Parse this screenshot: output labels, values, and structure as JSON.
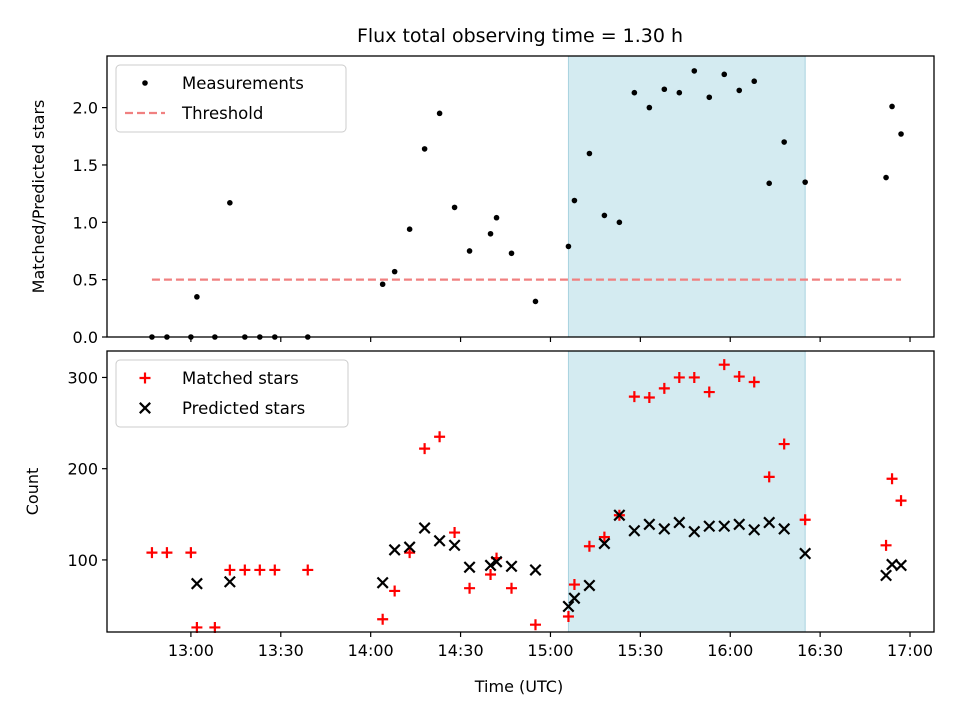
{
  "chart_data": [
    {
      "type": "scatter",
      "title": "Flux total observing time = 1.30 h",
      "xlabel": "",
      "ylabel": "Matched/Predicted stars",
      "xlim": [
        "12:32",
        "17:08"
      ],
      "ylim": [
        0,
        2.45
      ],
      "yticks": [
        0.0,
        0.5,
        1.0,
        1.5,
        2.0
      ],
      "ytick_labels": [
        "0.0",
        "0.5",
        "1.0",
        "1.5",
        "2.0"
      ],
      "shaded_interval": [
        "15:06",
        "16:25"
      ],
      "shaded_color": "#d4ebf1",
      "legend_position": "upper left",
      "series": [
        {
          "name": "Measurements",
          "marker": "point",
          "color": "#000000",
          "points": [
            {
              "x": "12:47",
              "y": 0.0
            },
            {
              "x": "12:52",
              "y": 0.0
            },
            {
              "x": "13:00",
              "y": 0.0
            },
            {
              "x": "13:02",
              "y": 0.35
            },
            {
              "x": "13:08",
              "y": 0.0
            },
            {
              "x": "13:13",
              "y": 1.17
            },
            {
              "x": "13:18",
              "y": 0.0
            },
            {
              "x": "13:23",
              "y": 0.0
            },
            {
              "x": "13:28",
              "y": 0.0
            },
            {
              "x": "13:39",
              "y": 0.0
            },
            {
              "x": "14:04",
              "y": 0.46
            },
            {
              "x": "14:08",
              "y": 0.57
            },
            {
              "x": "14:13",
              "y": 0.94
            },
            {
              "x": "14:18",
              "y": 1.64
            },
            {
              "x": "14:23",
              "y": 1.95
            },
            {
              "x": "14:28",
              "y": 1.13
            },
            {
              "x": "14:33",
              "y": 0.75
            },
            {
              "x": "14:40",
              "y": 0.9
            },
            {
              "x": "14:42",
              "y": 1.04
            },
            {
              "x": "14:47",
              "y": 0.73
            },
            {
              "x": "14:55",
              "y": 0.31
            },
            {
              "x": "15:06",
              "y": 0.79
            },
            {
              "x": "15:08",
              "y": 1.19
            },
            {
              "x": "15:13",
              "y": 1.6
            },
            {
              "x": "15:18",
              "y": 1.06
            },
            {
              "x": "15:23",
              "y": 1.0
            },
            {
              "x": "15:28",
              "y": 2.13
            },
            {
              "x": "15:33",
              "y": 2.0
            },
            {
              "x": "15:38",
              "y": 2.16
            },
            {
              "x": "15:43",
              "y": 2.13
            },
            {
              "x": "15:48",
              "y": 2.32
            },
            {
              "x": "15:53",
              "y": 2.09
            },
            {
              "x": "15:58",
              "y": 2.29
            },
            {
              "x": "16:03",
              "y": 2.15
            },
            {
              "x": "16:08",
              "y": 2.23
            },
            {
              "x": "16:13",
              "y": 1.34
            },
            {
              "x": "16:18",
              "y": 1.7
            },
            {
              "x": "16:25",
              "y": 1.35
            },
            {
              "x": "16:52",
              "y": 1.39
            },
            {
              "x": "16:54",
              "y": 2.01
            },
            {
              "x": "16:57",
              "y": 1.77
            }
          ]
        },
        {
          "name": "Threshold",
          "marker": "dashed-line",
          "color": "#f08080",
          "points": [
            {
              "x": "12:47",
              "y": 0.5
            },
            {
              "x": "16:57",
              "y": 0.5
            }
          ]
        }
      ]
    },
    {
      "type": "scatter",
      "title": "",
      "xlabel": "Time (UTC)",
      "ylabel": "Count",
      "xlim": [
        "12:32",
        "17:08"
      ],
      "ylim": [
        21,
        329
      ],
      "yticks": [
        100,
        200,
        300
      ],
      "ytick_labels": [
        "100",
        "200",
        "300"
      ],
      "xticks": [
        "13:00",
        "13:30",
        "14:00",
        "14:30",
        "15:00",
        "15:30",
        "16:00",
        "16:30",
        "17:00"
      ],
      "xtick_labels": [
        "13:00",
        "13:30",
        "14:00",
        "14:30",
        "15:00",
        "15:30",
        "16:00",
        "16:30",
        "17:00"
      ],
      "shaded_interval": [
        "15:06",
        "16:25"
      ],
      "shaded_color": "#d4ebf1",
      "legend_position": "upper left",
      "series": [
        {
          "name": "Matched stars",
          "marker": "plus",
          "color": "#ff0000",
          "points": [
            {
              "x": "12:47",
              "y": 108
            },
            {
              "x": "12:52",
              "y": 108
            },
            {
              "x": "13:00",
              "y": 108
            },
            {
              "x": "13:02",
              "y": 26
            },
            {
              "x": "13:08",
              "y": 26
            },
            {
              "x": "13:13",
              "y": 89
            },
            {
              "x": "13:18",
              "y": 89
            },
            {
              "x": "13:23",
              "y": 89
            },
            {
              "x": "13:28",
              "y": 89
            },
            {
              "x": "13:39",
              "y": 89
            },
            {
              "x": "14:04",
              "y": 35
            },
            {
              "x": "14:08",
              "y": 66
            },
            {
              "x": "14:13",
              "y": 108
            },
            {
              "x": "14:18",
              "y": 222
            },
            {
              "x": "14:23",
              "y": 235
            },
            {
              "x": "14:28",
              "y": 130
            },
            {
              "x": "14:33",
              "y": 69
            },
            {
              "x": "14:40",
              "y": 84
            },
            {
              "x": "14:42",
              "y": 102
            },
            {
              "x": "14:47",
              "y": 69
            },
            {
              "x": "14:55",
              "y": 29
            },
            {
              "x": "15:06",
              "y": 38
            },
            {
              "x": "15:08",
              "y": 73
            },
            {
              "x": "15:13",
              "y": 115
            },
            {
              "x": "15:18",
              "y": 125
            },
            {
              "x": "15:23",
              "y": 149
            },
            {
              "x": "15:28",
              "y": 279
            },
            {
              "x": "15:33",
              "y": 278
            },
            {
              "x": "15:38",
              "y": 288
            },
            {
              "x": "15:43",
              "y": 300
            },
            {
              "x": "15:48",
              "y": 300
            },
            {
              "x": "15:53",
              "y": 284
            },
            {
              "x": "15:58",
              "y": 314
            },
            {
              "x": "16:03",
              "y": 301
            },
            {
              "x": "16:08",
              "y": 295
            },
            {
              "x": "16:13",
              "y": 191
            },
            {
              "x": "16:18",
              "y": 227
            },
            {
              "x": "16:25",
              "y": 144
            },
            {
              "x": "16:52",
              "y": 116
            },
            {
              "x": "16:54",
              "y": 189
            },
            {
              "x": "16:57",
              "y": 165
            }
          ]
        },
        {
          "name": "Predicted stars",
          "marker": "x",
          "color": "#000000",
          "points": [
            {
              "x": "13:02",
              "y": 74
            },
            {
              "x": "13:13",
              "y": 76
            },
            {
              "x": "14:04",
              "y": 75
            },
            {
              "x": "14:08",
              "y": 111
            },
            {
              "x": "14:13",
              "y": 114
            },
            {
              "x": "14:18",
              "y": 135
            },
            {
              "x": "14:23",
              "y": 121
            },
            {
              "x": "14:28",
              "y": 116
            },
            {
              "x": "14:33",
              "y": 92
            },
            {
              "x": "14:40",
              "y": 94
            },
            {
              "x": "14:42",
              "y": 98
            },
            {
              "x": "14:47",
              "y": 93
            },
            {
              "x": "14:55",
              "y": 89
            },
            {
              "x": "15:06",
              "y": 49
            },
            {
              "x": "15:08",
              "y": 58
            },
            {
              "x": "15:13",
              "y": 72
            },
            {
              "x": "15:18",
              "y": 118
            },
            {
              "x": "15:23",
              "y": 149
            },
            {
              "x": "15:28",
              "y": 132
            },
            {
              "x": "15:33",
              "y": 139
            },
            {
              "x": "15:38",
              "y": 134
            },
            {
              "x": "15:43",
              "y": 141
            },
            {
              "x": "15:48",
              "y": 131
            },
            {
              "x": "15:53",
              "y": 137
            },
            {
              "x": "15:58",
              "y": 137
            },
            {
              "x": "16:03",
              "y": 139
            },
            {
              "x": "16:08",
              "y": 133
            },
            {
              "x": "16:13",
              "y": 141
            },
            {
              "x": "16:18",
              "y": 134
            },
            {
              "x": "16:25",
              "y": 107
            },
            {
              "x": "16:52",
              "y": 83
            },
            {
              "x": "16:54",
              "y": 95
            },
            {
              "x": "16:57",
              "y": 94
            }
          ]
        }
      ]
    }
  ]
}
